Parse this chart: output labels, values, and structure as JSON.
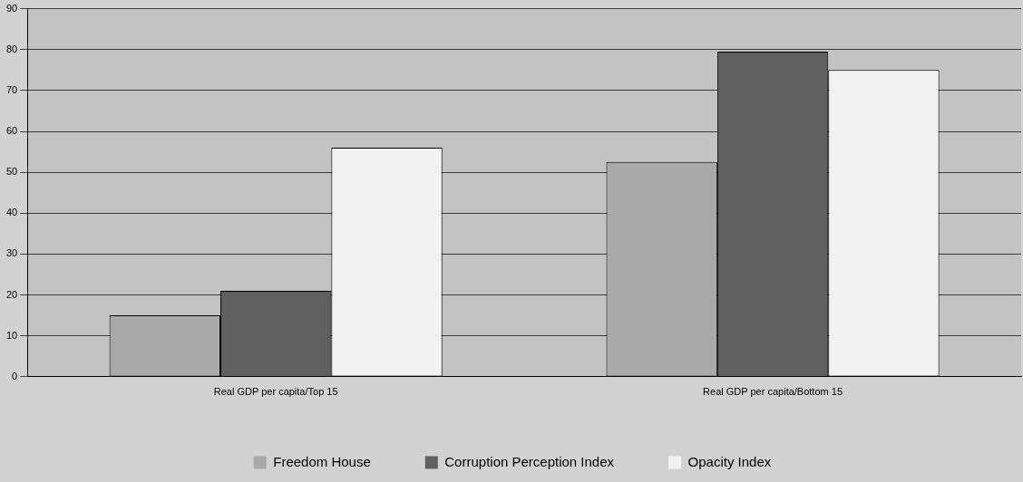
{
  "chart_data": {
    "type": "bar",
    "categories": [
      "Real GDP per capita/Top 15",
      "Real GDP per capita/Bottom 15"
    ],
    "series": [
      {
        "name": "Freedom House",
        "color": "#a9a9a9",
        "values": [
          15,
          52.5
        ]
      },
      {
        "name": "Corruption Perception Index",
        "color": "#5f5f5f",
        "values": [
          21,
          79.5
        ]
      },
      {
        "name": "Opacity Index",
        "color": "#f2f2f2",
        "values": [
          56,
          75
        ]
      }
    ],
    "ylim": [
      0,
      90
    ],
    "yticks": [
      0,
      10,
      20,
      30,
      40,
      50,
      60,
      70,
      80,
      90
    ],
    "grid": "y",
    "legend": "bottom"
  }
}
